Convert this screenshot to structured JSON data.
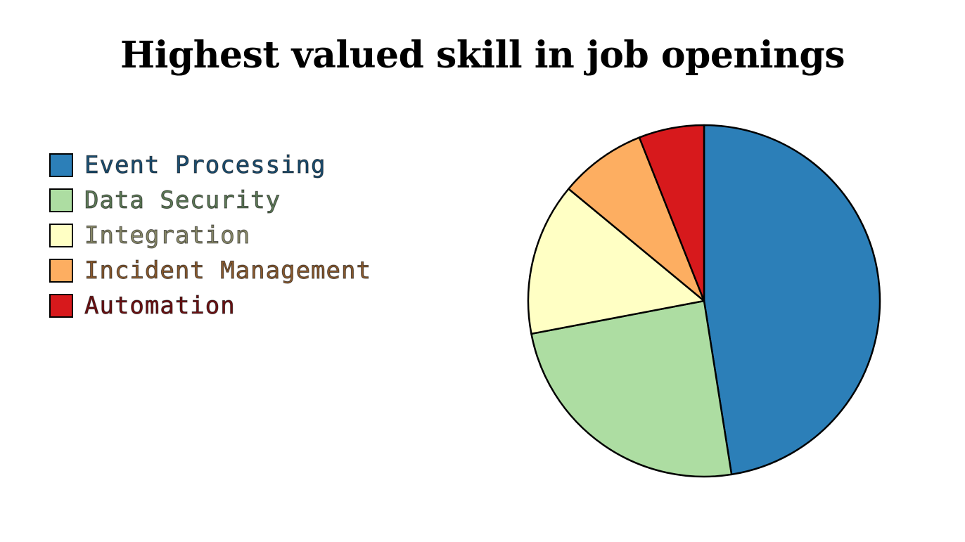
{
  "chart_data": {
    "type": "pie",
    "title": "Highest valued skill in job openings",
    "legend_position": "left",
    "start_angle": "12 o'clock",
    "direction": "clockwise",
    "slices": [
      {
        "label": "Event Processing",
        "value": 47.5,
        "color": "#2c7fb8",
        "text_color": "#1b4f73"
      },
      {
        "label": "Data Security",
        "value": 24.5,
        "color": "#addda2",
        "text_color": "#5d7a57"
      },
      {
        "label": "Integration",
        "value": 14.0,
        "color": "#ffffc4",
        "text_color": "#8a8a6a"
      },
      {
        "label": "Incident Management",
        "value": 8.0,
        "color": "#fdae61",
        "text_color": "#8a5a2e"
      },
      {
        "label": "Automation",
        "value": 6.0,
        "color": "#d7191c",
        "text_color": "#6e1012"
      }
    ]
  }
}
